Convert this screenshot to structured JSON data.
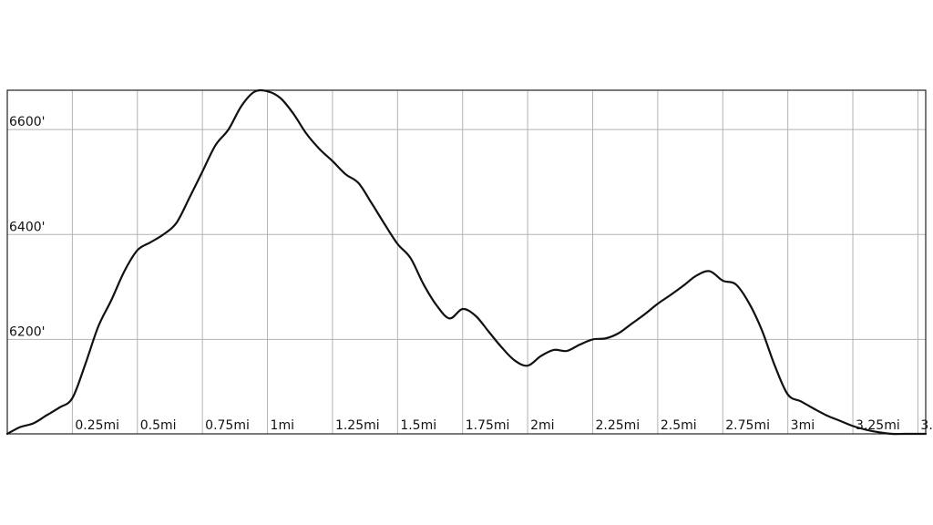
{
  "chart_data": {
    "type": "line",
    "title": "",
    "xlabel": "",
    "ylabel": "",
    "grid": true,
    "xlim": [
      0,
      3.53
    ],
    "ylim": [
      6020,
      6675
    ],
    "x_ticks": [
      {
        "value": 0.25,
        "label": "0.25mi"
      },
      {
        "value": 0.5,
        "label": "0.5mi"
      },
      {
        "value": 0.75,
        "label": "0.75mi"
      },
      {
        "value": 1.0,
        "label": "1mi"
      },
      {
        "value": 1.25,
        "label": "1.25mi"
      },
      {
        "value": 1.5,
        "label": "1.5mi"
      },
      {
        "value": 1.75,
        "label": "1.75mi"
      },
      {
        "value": 2.0,
        "label": "2mi"
      },
      {
        "value": 2.25,
        "label": "2.25mi"
      },
      {
        "value": 2.5,
        "label": "2.5mi"
      },
      {
        "value": 2.75,
        "label": "2.75mi"
      },
      {
        "value": 3.0,
        "label": "3mi"
      },
      {
        "value": 3.25,
        "label": "3.25mi"
      },
      {
        "value": 3.5,
        "label": "3."
      }
    ],
    "y_ticks": [
      {
        "value": 6200,
        "label": "6200'"
      },
      {
        "value": 6400,
        "label": "6400'"
      },
      {
        "value": 6600,
        "label": "6600'"
      }
    ],
    "series": [
      {
        "color": "#111111",
        "x": [
          0.0,
          0.05,
          0.1,
          0.15,
          0.2,
          0.25,
          0.3,
          0.35,
          0.4,
          0.45,
          0.5,
          0.55,
          0.6,
          0.65,
          0.7,
          0.75,
          0.8,
          0.85,
          0.9,
          0.95,
          1.0,
          1.05,
          1.1,
          1.15,
          1.2,
          1.25,
          1.3,
          1.35,
          1.4,
          1.45,
          1.5,
          1.55,
          1.6,
          1.65,
          1.7,
          1.75,
          1.8,
          1.85,
          1.9,
          1.95,
          2.0,
          2.05,
          2.1,
          2.15,
          2.2,
          2.25,
          2.3,
          2.35,
          2.4,
          2.45,
          2.5,
          2.55,
          2.6,
          2.65,
          2.7,
          2.75,
          2.8,
          2.85,
          2.9,
          2.95,
          3.0,
          3.05,
          3.1,
          3.15,
          3.2,
          3.25,
          3.3,
          3.35,
          3.4,
          3.45,
          3.5,
          3.53
        ],
        "y": [
          6020,
          6033,
          6040,
          6055,
          6070,
          6088,
          6153,
          6225,
          6275,
          6330,
          6370,
          6385,
          6400,
          6422,
          6470,
          6520,
          6570,
          6600,
          6645,
          6672,
          6673,
          6660,
          6630,
          6592,
          6563,
          6540,
          6515,
          6498,
          6460,
          6420,
          6382,
          6355,
          6305,
          6265,
          6240,
          6258,
          6245,
          6215,
          6185,
          6160,
          6150,
          6168,
          6180,
          6178,
          6190,
          6200,
          6202,
          6212,
          6230,
          6248,
          6268,
          6285,
          6303,
          6322,
          6330,
          6312,
          6305,
          6270,
          6218,
          6150,
          6095,
          6082,
          6068,
          6055,
          6045,
          6035,
          6028,
          6023,
          6020,
          6020,
          6020,
          6020
        ]
      }
    ]
  }
}
